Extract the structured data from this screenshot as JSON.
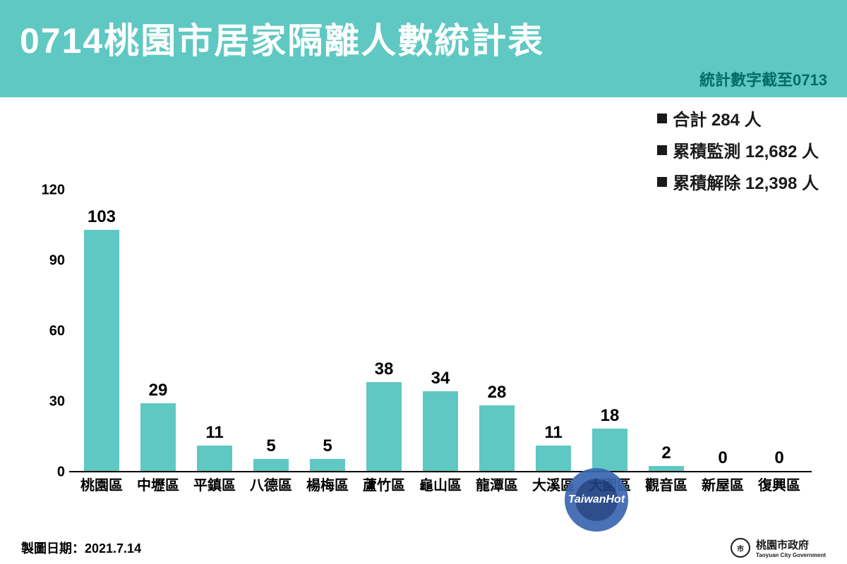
{
  "header": {
    "title": "0714桃園市居家隔離人數統計表",
    "subtitle": "統計數字截至0713",
    "bg_color": "#5fc8c2",
    "title_color": "#ffffff",
    "title_fontsize": 50,
    "subtitle_color": "#036b66",
    "subtitle_fontsize": 22
  },
  "legend": {
    "marker_color": "#1a1a1a",
    "text_color": "#1a1a1a",
    "fontsize": 24,
    "items": [
      {
        "label": "合計 284 人"
      },
      {
        "label": "累積監測 12,682 人"
      },
      {
        "label": "累積解除 12,398 人"
      }
    ]
  },
  "chart": {
    "type": "bar",
    "bar_color": "#5fc8c2",
    "value_label_color": "#000000",
    "value_label_fontsize": 24,
    "x_label_fontsize": 20,
    "x_label_color": "#000000",
    "y_label_fontsize": 20,
    "y_label_color": "#000000",
    "ylim": [
      0,
      120
    ],
    "yticks": [
      0,
      30,
      60,
      90,
      120
    ],
    "categories": [
      "桃園區",
      "中壢區",
      "平鎮區",
      "八德區",
      "楊梅區",
      "蘆竹區",
      "龜山區",
      "龍潭區",
      "大溪區",
      "大園區",
      "觀音區",
      "新屋區",
      "復興區"
    ],
    "values": [
      103,
      29,
      11,
      5,
      5,
      38,
      34,
      28,
      11,
      18,
      2,
      0,
      0
    ],
    "axis_color": "#000000",
    "background_color": "#ffffff"
  },
  "footer": {
    "left_text": "製圖日期：2021.7.14",
    "right_text": "桃園市政府",
    "right_sub": "Taoyuan City Government",
    "fontsize": 18
  },
  "watermark": {
    "text": "TaiwanHot",
    "outer_color": "#3a66b0",
    "inner_color": "#1d3e82"
  }
}
